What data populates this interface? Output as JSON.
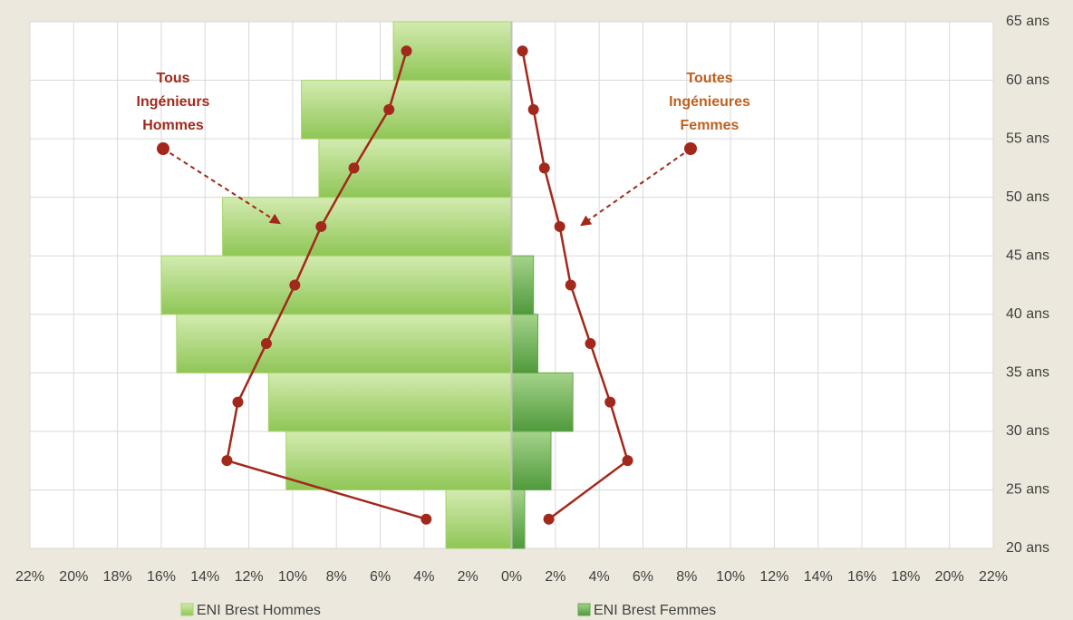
{
  "chart_data": {
    "type": "population_pyramid",
    "age_bins": [
      20,
      25,
      30,
      35,
      40,
      45,
      50,
      55,
      60,
      65
    ],
    "series": [
      {
        "name": "ENI Brest Hommes",
        "color": "#a9d46c",
        "values": [
          -3.0,
          -10.3,
          -11.1,
          -15.3,
          -16.0,
          -13.2,
          -8.8,
          -9.6,
          -5.4
        ]
      },
      {
        "name": "ENI Brest Femmes",
        "color": "#64a84a",
        "values": [
          0.6,
          1.8,
          2.8,
          1.2,
          1.0,
          0,
          0,
          0,
          0
        ]
      }
    ],
    "lines": [
      {
        "label": [
          "Tous",
          "Ingénieurs",
          "Hommes"
        ],
        "label_color": "#a12a1c",
        "color": "#a3281c",
        "values": [
          -3.9,
          -13.0,
          -12.5,
          -11.2,
          -9.9,
          -8.7,
          -7.2,
          -5.6,
          -4.8
        ]
      },
      {
        "label": [
          "Toutes",
          "Ingénieures",
          "Femmes"
        ],
        "label_color": "#c0601c",
        "color": "#a3281c",
        "values": [
          1.7,
          5.3,
          4.5,
          3.6,
          2.7,
          2.2,
          1.5,
          1.0,
          0.5
        ]
      }
    ],
    "xlim": [
      -22,
      22
    ],
    "xticks": [
      {
        "value": -22,
        "label": "22%"
      },
      {
        "value": -20,
        "label": "20%"
      },
      {
        "value": -18,
        "label": "18%"
      },
      {
        "value": -16,
        "label": "16%"
      },
      {
        "value": -14,
        "label": "14%"
      },
      {
        "value": -12,
        "label": "12%"
      },
      {
        "value": -10,
        "label": "10%"
      },
      {
        "value": -8,
        "label": "8%"
      },
      {
        "value": -6,
        "label": "6%"
      },
      {
        "value": -4,
        "label": "4%"
      },
      {
        "value": -2,
        "label": "2%"
      },
      {
        "value": 0,
        "label": "0%"
      },
      {
        "value": 2,
        "label": "2%"
      },
      {
        "value": 4,
        "label": "4%"
      },
      {
        "value": 6,
        "label": "6%"
      },
      {
        "value": 8,
        "label": "8%"
      },
      {
        "value": 10,
        "label": "10%"
      },
      {
        "value": 12,
        "label": "12%"
      },
      {
        "value": 14,
        "label": "14%"
      },
      {
        "value": 16,
        "label": "16%"
      },
      {
        "value": 18,
        "label": "18%"
      },
      {
        "value": 20,
        "label": "20%"
      },
      {
        "value": 22,
        "label": "22%"
      }
    ],
    "ylim": [
      20,
      65
    ],
    "yticks": [
      {
        "value": 20,
        "label": "20 ans"
      },
      {
        "value": 25,
        "label": "25 ans"
      },
      {
        "value": 30,
        "label": "30 ans"
      },
      {
        "value": 35,
        "label": "35 ans"
      },
      {
        "value": 40,
        "label": "40 ans"
      },
      {
        "value": 45,
        "label": "45 ans"
      },
      {
        "value": 50,
        "label": "50 ans"
      },
      {
        "value": 55,
        "label": "55 ans"
      },
      {
        "value": 60,
        "label": "60 ans"
      },
      {
        "value": 65,
        "label": "65 ans"
      }
    ],
    "grid": true
  }
}
